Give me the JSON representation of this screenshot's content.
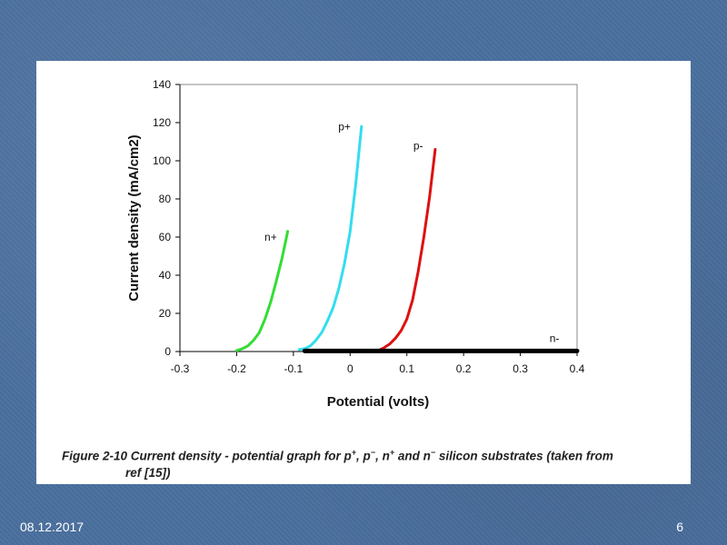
{
  "slide": {
    "date": "08.12.2017",
    "page_number": "6",
    "background_color": "#4a6f9e"
  },
  "caption": {
    "prefix": "Figure 2-10 Current density - potential graph for p",
    "sup1": "+",
    "mid1": ", p",
    "sup2": "−",
    "mid2": ", n",
    "sup3": "+",
    "mid3": " and n",
    "sup4": "−",
    "suffix": " silicon substrates (taken from",
    "line2": "ref [15])"
  },
  "chart_data": {
    "type": "line",
    "xlabel": "Potential (volts)",
    "ylabel": "Current density (mA/cm2)",
    "xlim": [
      -0.3,
      0.4
    ],
    "ylim": [
      0,
      140
    ],
    "xticks": [
      "-0.3",
      "-0.2",
      "-0.1",
      "0",
      "0.1",
      "0.2",
      "0.3",
      "0.4"
    ],
    "yticks": [
      "0",
      "20",
      "40",
      "60",
      "80",
      "100",
      "120",
      "140"
    ],
    "grid": false,
    "series": [
      {
        "name": "n+",
        "color": "#33dd33",
        "x": [
          -0.2,
          -0.19,
          -0.18,
          -0.17,
          -0.16,
          -0.15,
          -0.14,
          -0.13,
          -0.12,
          -0.11
        ],
        "y": [
          0.5,
          1.5,
          3,
          6,
          10,
          17,
          26,
          37,
          49,
          63
        ]
      },
      {
        "name": "p+",
        "color": "#33ddee",
        "x": [
          -0.09,
          -0.08,
          -0.07,
          -0.06,
          -0.05,
          -0.04,
          -0.03,
          -0.02,
          -0.01,
          0,
          0.01,
          0.02
        ],
        "y": [
          1,
          1.5,
          3,
          6,
          10,
          16,
          23,
          33,
          46,
          63,
          88,
          118
        ]
      },
      {
        "name": "p-",
        "color": "#dd1111",
        "x": [
          0.05,
          0.06,
          0.07,
          0.08,
          0.09,
          0.1,
          0.11,
          0.12,
          0.13,
          0.14,
          0.15
        ],
        "y": [
          0.5,
          2,
          4,
          7,
          11,
          17,
          27,
          42,
          60,
          81,
          106
        ]
      },
      {
        "name": "n-",
        "color": "#000000",
        "x": [
          -0.08,
          0.4
        ],
        "y": [
          0.3,
          0.3
        ]
      }
    ],
    "annotations": [
      {
        "text": "n+",
        "x": -0.14,
        "y": 58
      },
      {
        "text": "p+",
        "x": -0.01,
        "y": 116
      },
      {
        "text": "p-",
        "x": 0.12,
        "y": 106
      },
      {
        "text": "n-",
        "x": 0.36,
        "y": 5
      }
    ]
  }
}
